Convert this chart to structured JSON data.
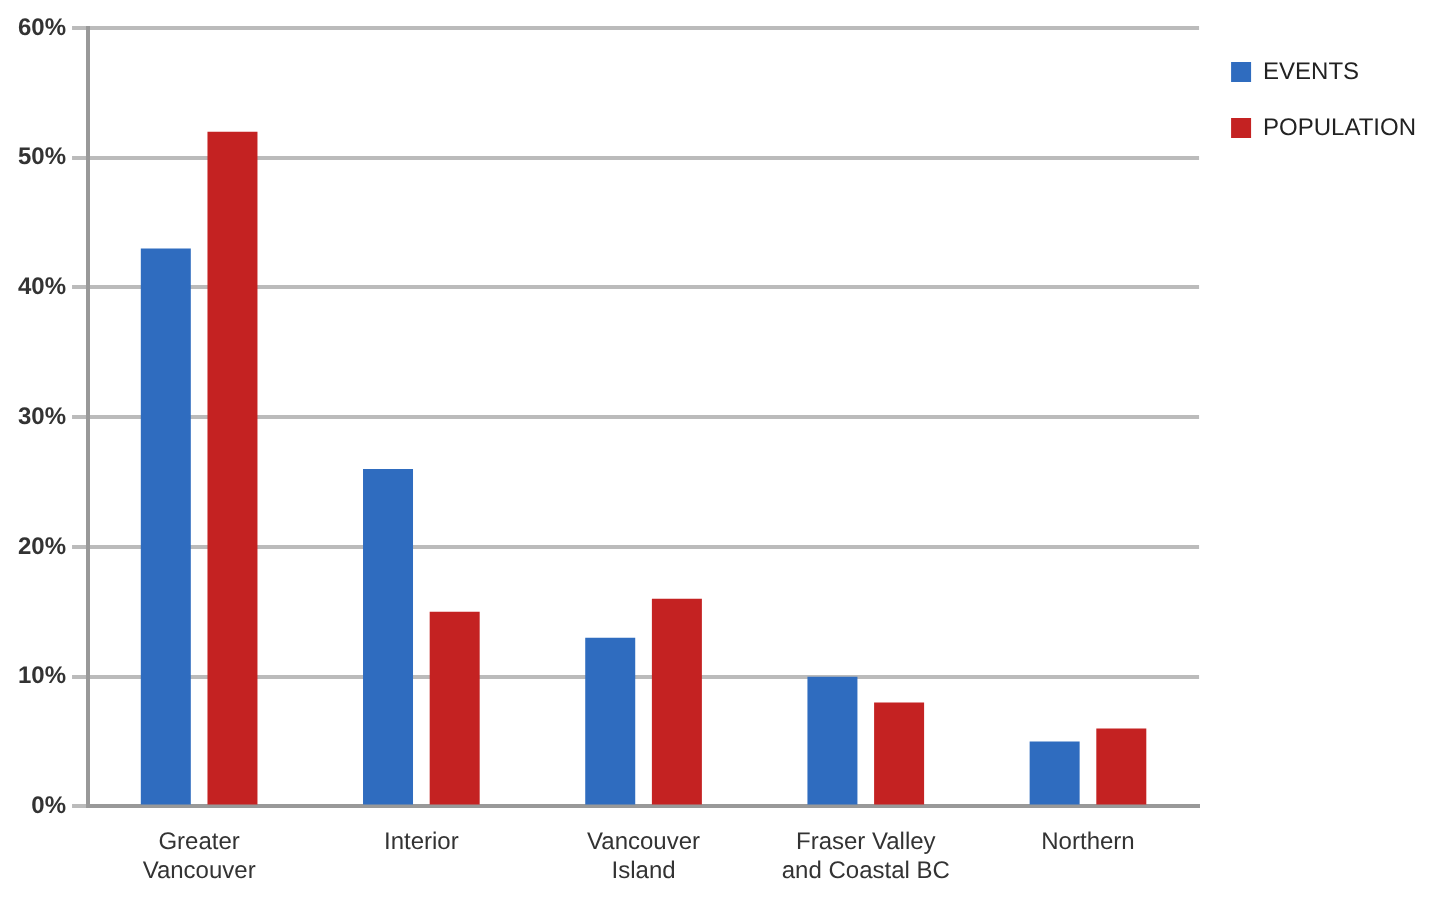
{
  "chart_data": {
    "type": "bar",
    "categories": [
      "Greater Vancouver",
      "Interior",
      "Vancouver Island",
      "Fraser Valley and Coastal BC",
      "Northern"
    ],
    "series": [
      {
        "name": "EVENTS",
        "color": "#2f6cbf",
        "values": [
          43,
          26,
          13,
          10,
          5
        ]
      },
      {
        "name": "POPULATION",
        "color": "#c42222",
        "values": [
          52,
          15,
          16,
          8,
          6
        ]
      }
    ],
    "ylim": [
      0,
      60
    ],
    "yticks": [
      {
        "value": 0,
        "label": "0%"
      },
      {
        "value": 10,
        "label": "10%"
      },
      {
        "value": 20,
        "label": "20%"
      },
      {
        "value": 30,
        "label": "30%"
      },
      {
        "value": 40,
        "label": "40%"
      },
      {
        "value": 50,
        "label": "50%"
      },
      {
        "value": 60,
        "label": "60%"
      }
    ],
    "grid": "y",
    "legend": "top right"
  }
}
